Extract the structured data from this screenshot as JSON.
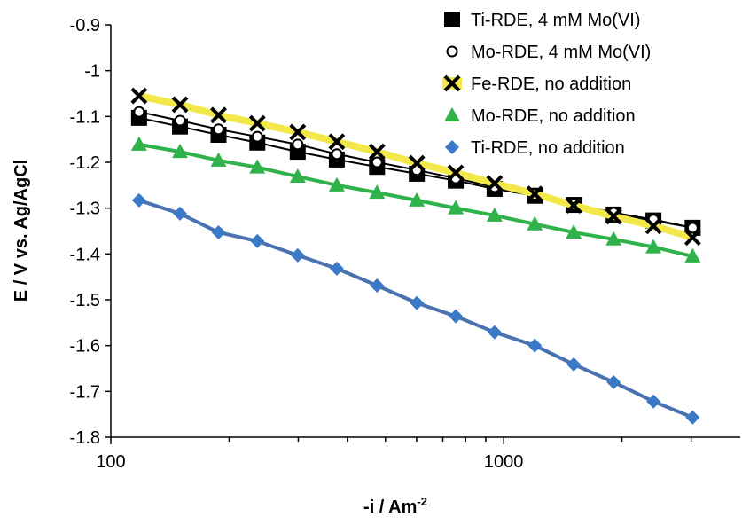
{
  "chart_data": {
    "type": "line",
    "x_label": {
      "text": "-i / Am",
      "sup": "-2"
    },
    "y_label": "E / V vs. Ag/AgCl",
    "x": [
      118,
      150,
      188,
      236,
      299,
      376,
      476,
      601,
      755,
      948,
      1200,
      1507,
      1905,
      2405,
      3027
    ],
    "xscale": "log",
    "xlim": [
      100,
      4000
    ],
    "xticks": [
      100,
      1000
    ],
    "xminorticks": [
      200,
      300,
      400,
      500,
      600,
      700,
      800,
      900,
      2000,
      3000
    ],
    "ylim": [
      -1.8,
      -0.9
    ],
    "yticks": [
      -0.9,
      -1,
      -1.1,
      -1.2,
      -1.3,
      -1.4,
      -1.5,
      -1.6,
      -1.7,
      -1.8
    ],
    "grid": false,
    "legend": "top-right",
    "series": [
      {
        "name": "Ti-RDE, 4 mM Mo(VI)",
        "color": "#000000",
        "line_color": "#000000",
        "marker": "square",
        "values": [
          -1.103,
          -1.122,
          -1.14,
          -1.157,
          -1.177,
          -1.194,
          -1.21,
          -1.225,
          -1.24,
          -1.258,
          -1.273,
          -1.293,
          -1.314,
          -1.327,
          -1.343
        ]
      },
      {
        "name": "Mo-RDE, 4 mM Mo(VI)",
        "color": "#000000",
        "line_color": "#000000",
        "marker": "circle",
        "values": [
          -1.09,
          -1.109,
          -1.128,
          -1.144,
          -1.161,
          -1.182,
          -1.2,
          -1.217,
          -1.235,
          -1.254,
          -1.271,
          -1.291,
          -1.31,
          -1.325,
          -1.343
        ]
      },
      {
        "name": "Fe-RDE, no addition",
        "color": "#000000",
        "line_color": "#f2e84a",
        "marker": "x",
        "values": [
          -1.055,
          -1.074,
          -1.097,
          -1.115,
          -1.134,
          -1.155,
          -1.177,
          -1.202,
          -1.223,
          -1.246,
          -1.269,
          -1.294,
          -1.318,
          -1.339,
          -1.364
        ]
      },
      {
        "name": "Mo-RDE, no addition",
        "color": "#2fb24a",
        "line_color": "#2fb24a",
        "marker": "triangle",
        "values": [
          -1.161,
          -1.177,
          -1.196,
          -1.211,
          -1.231,
          -1.25,
          -1.266,
          -1.283,
          -1.3,
          -1.316,
          -1.335,
          -1.353,
          -1.368,
          -1.385,
          -1.405
        ]
      },
      {
        "name": "Ti-RDE, no addition",
        "color": "#3a78c8",
        "line_color": "#4a72b0",
        "marker": "diamond",
        "values": [
          -1.283,
          -1.312,
          -1.353,
          -1.372,
          -1.403,
          -1.432,
          -1.469,
          -1.507,
          -1.536,
          -1.571,
          -1.6,
          -1.641,
          -1.68,
          -1.722,
          -1.757
        ]
      }
    ]
  }
}
